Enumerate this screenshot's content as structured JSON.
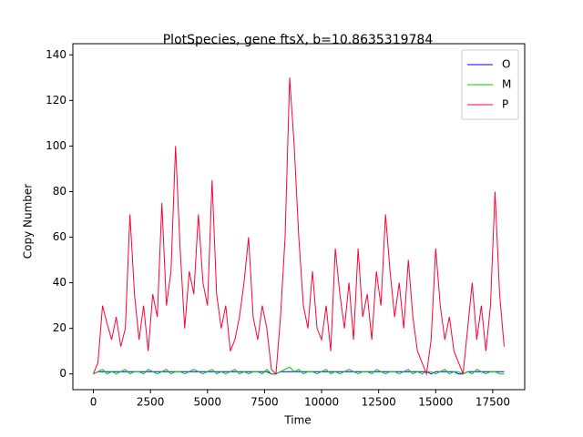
{
  "chart_data": {
    "type": "line",
    "title": "PlotSpecies, gene ftsX, b=10.8635319784",
    "xlabel": "Time",
    "ylabel": "Copy Number",
    "x": [
      0,
      200,
      400,
      600,
      800,
      1000,
      1200,
      1400,
      1600,
      1800,
      2000,
      2200,
      2400,
      2600,
      2800,
      3000,
      3200,
      3400,
      3600,
      3800,
      4000,
      4200,
      4400,
      4600,
      4800,
      5000,
      5200,
      5400,
      5600,
      5800,
      6000,
      6200,
      6400,
      6600,
      6800,
      7000,
      7200,
      7400,
      7600,
      7800,
      8000,
      8200,
      8400,
      8600,
      8800,
      9000,
      9200,
      9400,
      9600,
      9800,
      10000,
      10200,
      10400,
      10600,
      10800,
      11000,
      11200,
      11400,
      11600,
      11800,
      12000,
      12200,
      12400,
      12600,
      12800,
      13000,
      13200,
      13400,
      13600,
      13800,
      14000,
      14200,
      14400,
      14600,
      14800,
      15000,
      15200,
      15400,
      15600,
      15800,
      16000,
      16200,
      16400,
      16600,
      16800,
      17000,
      17200,
      17400,
      17600,
      17800,
      18000
    ],
    "series": [
      {
        "name": "O",
        "color": "#0000ff",
        "values": [
          0,
          1,
          1,
          1,
          1,
          1,
          1,
          1,
          1,
          1,
          1,
          1,
          1,
          1,
          1,
          1,
          1,
          1,
          1,
          1,
          1,
          1,
          1,
          1,
          1,
          1,
          1,
          1,
          1,
          1,
          1,
          1,
          1,
          1,
          1,
          1,
          1,
          1,
          1,
          0,
          0,
          1,
          1,
          1,
          1,
          1,
          1,
          1,
          1,
          1,
          1,
          1,
          1,
          1,
          1,
          1,
          1,
          1,
          1,
          1,
          1,
          1,
          1,
          1,
          1,
          1,
          1,
          1,
          1,
          1,
          1,
          1,
          1,
          1,
          0,
          1,
          1,
          1,
          1,
          1,
          0,
          0,
          1,
          1,
          1,
          1,
          1,
          1,
          1,
          1,
          1
        ]
      },
      {
        "name": "M",
        "color": "#00cc00",
        "values": [
          0,
          1,
          2,
          0,
          1,
          0,
          1,
          2,
          0,
          1,
          1,
          0,
          2,
          1,
          0,
          1,
          2,
          0,
          1,
          1,
          0,
          1,
          2,
          1,
          0,
          1,
          2,
          0,
          1,
          0,
          1,
          2,
          0,
          1,
          0,
          1,
          1,
          0,
          2,
          0,
          0,
          1,
          2,
          3,
          1,
          2,
          0,
          1,
          1,
          0,
          1,
          2,
          0,
          1,
          0,
          1,
          2,
          1,
          0,
          1,
          1,
          0,
          2,
          1,
          0,
          1,
          1,
          0,
          1,
          2,
          0,
          1,
          0,
          1,
          1,
          0,
          1,
          2,
          0,
          1,
          1,
          0,
          1,
          0,
          2,
          1,
          0,
          1,
          1,
          0,
          0
        ]
      },
      {
        "name": "P",
        "color": "#ff0033",
        "values": [
          0,
          5,
          30,
          22,
          15,
          25,
          12,
          20,
          70,
          35,
          15,
          30,
          10,
          35,
          25,
          75,
          30,
          45,
          100,
          55,
          20,
          45,
          35,
          70,
          40,
          30,
          85,
          35,
          20,
          30,
          10,
          15,
          25,
          40,
          60,
          25,
          15,
          30,
          20,
          2,
          0,
          25,
          60,
          130,
          100,
          60,
          30,
          20,
          45,
          20,
          15,
          30,
          10,
          55,
          35,
          20,
          40,
          15,
          55,
          25,
          35,
          15,
          45,
          30,
          70,
          45,
          25,
          40,
          20,
          50,
          25,
          10,
          5,
          0,
          15,
          55,
          30,
          15,
          25,
          10,
          5,
          0,
          20,
          40,
          15,
          30,
          10,
          30,
          80,
          35,
          12
        ]
      }
    ],
    "xlim": [
      -900,
      18900
    ],
    "xticks": [
      0,
      2500,
      5000,
      7500,
      10000,
      12500,
      15000,
      17500
    ],
    "ylim": [
      -6.9,
      144.9
    ],
    "yticks": [
      0,
      20,
      40,
      60,
      80,
      100,
      120,
      140
    ],
    "legend": "upper right"
  }
}
